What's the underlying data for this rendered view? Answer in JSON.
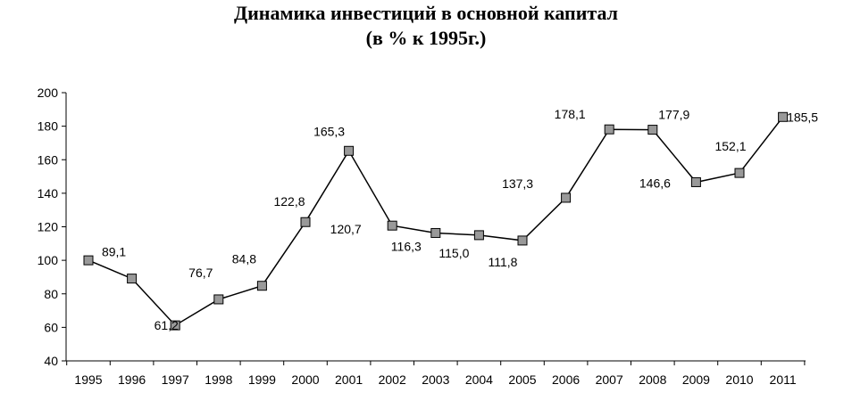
{
  "chart_data": {
    "type": "line",
    "title": "Динамика инвестиций в основной капитал",
    "subtitle": "(в % к 1995г.)",
    "categories": [
      "1995",
      "1996",
      "1997",
      "1998",
      "1999",
      "2000",
      "2001",
      "2002",
      "2003",
      "2004",
      "2005",
      "2006",
      "2007",
      "2008",
      "2009",
      "2010",
      "2011"
    ],
    "values": [
      100,
      89.1,
      61.2,
      76.7,
      84.8,
      122.8,
      165.3,
      120.7,
      116.3,
      115.0,
      111.8,
      137.3,
      178.1,
      177.9,
      146.6,
      152.1,
      185.5
    ],
    "data_labels": [
      "",
      "89,1",
      "61,2",
      "76,7",
      "84,8",
      "122,8",
      "165,3",
      "120,7",
      "116,3",
      "115,0",
      "111,8",
      "137,3",
      "178,1",
      "177,9",
      "146,6",
      "152,1",
      "185,5"
    ],
    "y_ticks": [
      "40",
      "60",
      "80",
      "100",
      "120",
      "140",
      "160",
      "180",
      "200"
    ],
    "ylim": [
      40,
      200
    ],
    "grid": false,
    "legend": "none",
    "colors": {
      "line": "#000000",
      "marker_fill": "#999999",
      "marker_stroke": "#000000"
    }
  }
}
